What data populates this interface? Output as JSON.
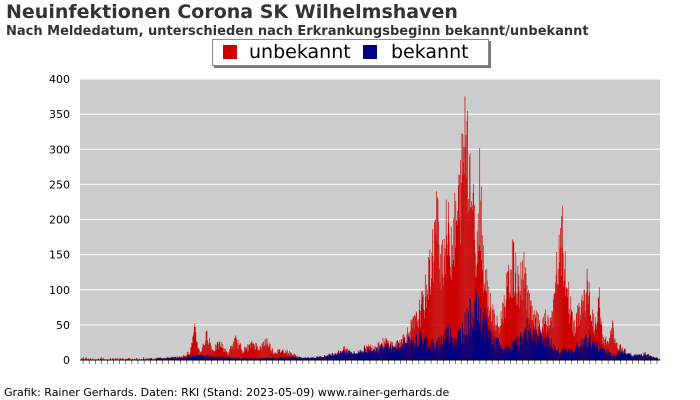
{
  "title": "Neuinfektionen Corona SK Wilhelmshaven",
  "subtitle": "Nach Meldedatum, unterschieden nach Erkrankungsbeginn bekannt/unbekannt",
  "credit": "Grafik: Rainer Gerhards. Daten: RKI (Stand: 2023-05-09) www.rainer-gerhards.de",
  "colors": {
    "unknown": "#cc0000",
    "known": "#000080",
    "plot_bg": "#cccccc",
    "grid": "#ffffff",
    "axis": "#000000"
  },
  "chart_data": {
    "type": "bar",
    "stacked": true,
    "title": "Neuinfektionen Corona SK Wilhelmshaven",
    "subtitle": "Nach Meldedatum, unterschieden nach Erkrankungsbeginn bekannt/unbekannt",
    "xlabel": "",
    "ylabel": "",
    "ylim": [
      0,
      400
    ],
    "yticks": [
      0,
      50,
      100,
      150,
      200,
      250,
      300,
      350,
      400
    ],
    "grid": true,
    "legend_position": "top-center",
    "x_tick_labels_legible": false,
    "total_days": 1140,
    "known_points": [
      [
        0,
        0
      ],
      [
        90,
        0
      ],
      [
        150,
        2
      ],
      [
        210,
        4
      ],
      [
        230,
        6
      ],
      [
        300,
        3
      ],
      [
        330,
        2
      ],
      [
        380,
        3
      ],
      [
        420,
        4
      ],
      [
        440,
        5
      ],
      [
        480,
        8
      ],
      [
        540,
        15
      ],
      [
        580,
        15
      ],
      [
        650,
        25
      ],
      [
        670,
        30
      ],
      [
        700,
        20
      ],
      [
        720,
        40
      ],
      [
        740,
        30
      ],
      [
        760,
        55
      ],
      [
        775,
        75
      ],
      [
        790,
        55
      ],
      [
        800,
        50
      ],
      [
        810,
        30
      ],
      [
        820,
        25
      ],
      [
        830,
        15
      ],
      [
        845,
        20
      ],
      [
        860,
        25
      ],
      [
        880,
        45
      ],
      [
        900,
        35
      ],
      [
        920,
        28
      ],
      [
        935,
        15
      ],
      [
        960,
        12
      ],
      [
        980,
        20
      ],
      [
        1000,
        30
      ],
      [
        1015,
        20
      ],
      [
        1030,
        15
      ],
      [
        1045,
        8
      ],
      [
        1060,
        10
      ],
      [
        1075,
        20
      ],
      [
        1090,
        30
      ],
      [
        1100,
        18
      ],
      [
        1110,
        8
      ],
      [
        1120,
        5
      ],
      [
        1130,
        3
      ],
      [
        1139,
        2
      ]
    ],
    "total_points": [
      [
        0,
        0
      ],
      [
        20,
        1
      ],
      [
        40,
        2
      ],
      [
        60,
        1
      ],
      [
        90,
        1
      ],
      [
        120,
        2
      ],
      [
        150,
        3
      ],
      [
        180,
        4
      ],
      [
        200,
        5
      ],
      [
        215,
        12
      ],
      [
        225,
        44
      ],
      [
        235,
        10
      ],
      [
        250,
        40
      ],
      [
        260,
        15
      ],
      [
        275,
        25
      ],
      [
        290,
        10
      ],
      [
        305,
        30
      ],
      [
        320,
        15
      ],
      [
        340,
        25
      ],
      [
        355,
        18
      ],
      [
        365,
        31
      ],
      [
        380,
        12
      ],
      [
        400,
        15
      ],
      [
        420,
        8
      ],
      [
        435,
        3
      ],
      [
        460,
        4
      ],
      [
        480,
        6
      ],
      [
        500,
        10
      ],
      [
        520,
        17
      ],
      [
        540,
        10
      ],
      [
        560,
        18
      ],
      [
        580,
        22
      ],
      [
        600,
        28
      ],
      [
        620,
        22
      ],
      [
        640,
        38
      ],
      [
        660,
        60
      ],
      [
        675,
        90
      ],
      [
        690,
        150
      ],
      [
        700,
        215
      ],
      [
        710,
        160
      ],
      [
        720,
        195
      ],
      [
        730,
        185
      ],
      [
        740,
        215
      ],
      [
        750,
        280
      ],
      [
        755,
        350
      ],
      [
        760,
        378
      ],
      [
        765,
        300
      ],
      [
        770,
        255
      ],
      [
        775,
        195
      ],
      [
        780,
        165
      ],
      [
        785,
        295
      ],
      [
        790,
        185
      ],
      [
        795,
        130
      ],
      [
        800,
        108
      ],
      [
        808,
        80
      ],
      [
        816,
        55
      ],
      [
        824,
        50
      ],
      [
        832,
        85
      ],
      [
        840,
        110
      ],
      [
        846,
        140
      ],
      [
        852,
        147
      ],
      [
        858,
        120
      ],
      [
        864,
        110
      ],
      [
        870,
        135
      ],
      [
        876,
        120
      ],
      [
        882,
        90
      ],
      [
        890,
        60
      ],
      [
        898,
        60
      ],
      [
        906,
        45
      ],
      [
        914,
        60
      ],
      [
        922,
        58
      ],
      [
        930,
        75
      ],
      [
        936,
        130
      ],
      [
        942,
        160
      ],
      [
        948,
        185
      ],
      [
        954,
        120
      ],
      [
        960,
        95
      ],
      [
        966,
        70
      ],
      [
        972,
        45
      ],
      [
        978,
        70
      ],
      [
        984,
        85
      ],
      [
        990,
        90
      ],
      [
        996,
        110
      ],
      [
        1002,
        90
      ],
      [
        1008,
        58
      ],
      [
        1014,
        50
      ],
      [
        1020,
        90
      ],
      [
        1026,
        35
      ],
      [
        1032,
        30
      ],
      [
        1040,
        28
      ],
      [
        1046,
        52
      ],
      [
        1052,
        22
      ],
      [
        1060,
        20
      ],
      [
        1070,
        15
      ],
      [
        1080,
        8
      ],
      [
        1090,
        7
      ],
      [
        1100,
        8
      ],
      [
        1110,
        10
      ],
      [
        1120,
        6
      ],
      [
        1130,
        4
      ],
      [
        1139,
        2
      ]
    ]
  }
}
